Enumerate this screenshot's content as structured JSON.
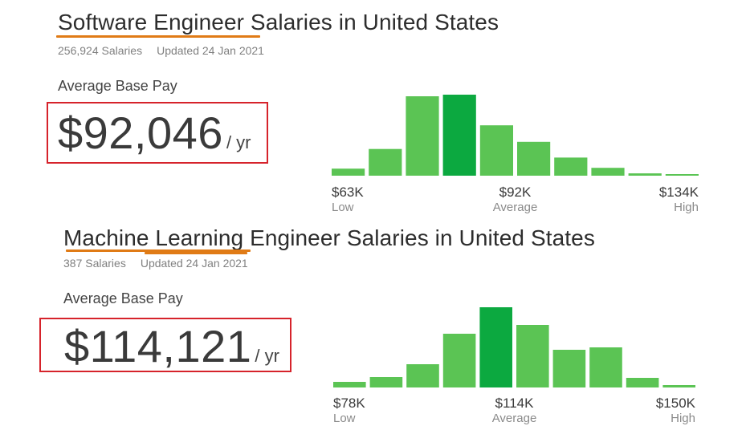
{
  "colors": {
    "bar": "#5bc454",
    "bar_highlight": "#0ca940",
    "underline": "#e07b16",
    "box": "#d6232b"
  },
  "sections": [
    {
      "title": "Software Engineer Salaries in United States",
      "salaries_count": "256,924 Salaries",
      "updated": "Updated 24 Jan 2021",
      "avg_label": "Average Base Pay",
      "pay_amount": "$92,046",
      "pay_unit": "/ yr"
    },
    {
      "title": "Machine Learning Engineer Salaries in United States",
      "salaries_count": "387 Salaries",
      "updated": "Updated 24 Jan 2021",
      "avg_label": "Average Base Pay",
      "pay_amount": "$114,121",
      "pay_unit": "/ yr"
    }
  ],
  "chart_data": [
    {
      "type": "bar",
      "title": "Software Engineer Salaries in United States",
      "values": [
        9,
        34,
        101,
        103,
        64,
        43,
        23,
        10,
        3,
        1
      ],
      "highlight_index": 3,
      "ticks": [
        {
          "value": "$63K",
          "label": "Low"
        },
        {
          "value": "$92K",
          "label": "Average"
        },
        {
          "value": "$134K",
          "label": "High"
        }
      ]
    },
    {
      "type": "bar",
      "title": "Machine Learning Engineer Salaries in United States",
      "values": [
        7,
        13,
        29,
        67,
        100,
        78,
        47,
        50,
        12,
        3
      ],
      "highlight_index": 4,
      "ticks": [
        {
          "value": "$78K",
          "label": "Low"
        },
        {
          "value": "$114K",
          "label": "Average"
        },
        {
          "value": "$150K",
          "label": "High"
        }
      ]
    }
  ]
}
